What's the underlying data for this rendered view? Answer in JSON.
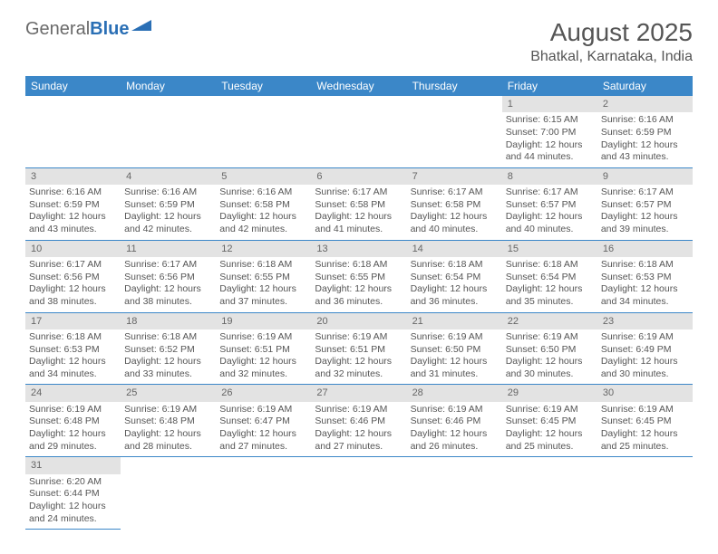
{
  "logo": {
    "general": "General",
    "blue": "Blue"
  },
  "title": {
    "month": "August 2025",
    "location": "Bhatkal, Karnataka, India"
  },
  "colors": {
    "header_bg": "#3b87c8",
    "daynum_bg": "#e3e3e3",
    "border": "#3b87c8"
  },
  "weekdays": [
    "Sunday",
    "Monday",
    "Tuesday",
    "Wednesday",
    "Thursday",
    "Friday",
    "Saturday"
  ],
  "days": [
    {
      "n": "1",
      "sr": "6:15 AM",
      "ss": "7:00 PM",
      "dl": "12 hours and 44 minutes."
    },
    {
      "n": "2",
      "sr": "6:16 AM",
      "ss": "6:59 PM",
      "dl": "12 hours and 43 minutes."
    },
    {
      "n": "3",
      "sr": "6:16 AM",
      "ss": "6:59 PM",
      "dl": "12 hours and 43 minutes."
    },
    {
      "n": "4",
      "sr": "6:16 AM",
      "ss": "6:59 PM",
      "dl": "12 hours and 42 minutes."
    },
    {
      "n": "5",
      "sr": "6:16 AM",
      "ss": "6:58 PM",
      "dl": "12 hours and 42 minutes."
    },
    {
      "n": "6",
      "sr": "6:17 AM",
      "ss": "6:58 PM",
      "dl": "12 hours and 41 minutes."
    },
    {
      "n": "7",
      "sr": "6:17 AM",
      "ss": "6:58 PM",
      "dl": "12 hours and 40 minutes."
    },
    {
      "n": "8",
      "sr": "6:17 AM",
      "ss": "6:57 PM",
      "dl": "12 hours and 40 minutes."
    },
    {
      "n": "9",
      "sr": "6:17 AM",
      "ss": "6:57 PM",
      "dl": "12 hours and 39 minutes."
    },
    {
      "n": "10",
      "sr": "6:17 AM",
      "ss": "6:56 PM",
      "dl": "12 hours and 38 minutes."
    },
    {
      "n": "11",
      "sr": "6:17 AM",
      "ss": "6:56 PM",
      "dl": "12 hours and 38 minutes."
    },
    {
      "n": "12",
      "sr": "6:18 AM",
      "ss": "6:55 PM",
      "dl": "12 hours and 37 minutes."
    },
    {
      "n": "13",
      "sr": "6:18 AM",
      "ss": "6:55 PM",
      "dl": "12 hours and 36 minutes."
    },
    {
      "n": "14",
      "sr": "6:18 AM",
      "ss": "6:54 PM",
      "dl": "12 hours and 36 minutes."
    },
    {
      "n": "15",
      "sr": "6:18 AM",
      "ss": "6:54 PM",
      "dl": "12 hours and 35 minutes."
    },
    {
      "n": "16",
      "sr": "6:18 AM",
      "ss": "6:53 PM",
      "dl": "12 hours and 34 minutes."
    },
    {
      "n": "17",
      "sr": "6:18 AM",
      "ss": "6:53 PM",
      "dl": "12 hours and 34 minutes."
    },
    {
      "n": "18",
      "sr": "6:18 AM",
      "ss": "6:52 PM",
      "dl": "12 hours and 33 minutes."
    },
    {
      "n": "19",
      "sr": "6:19 AM",
      "ss": "6:51 PM",
      "dl": "12 hours and 32 minutes."
    },
    {
      "n": "20",
      "sr": "6:19 AM",
      "ss": "6:51 PM",
      "dl": "12 hours and 32 minutes."
    },
    {
      "n": "21",
      "sr": "6:19 AM",
      "ss": "6:50 PM",
      "dl": "12 hours and 31 minutes."
    },
    {
      "n": "22",
      "sr": "6:19 AM",
      "ss": "6:50 PM",
      "dl": "12 hours and 30 minutes."
    },
    {
      "n": "23",
      "sr": "6:19 AM",
      "ss": "6:49 PM",
      "dl": "12 hours and 30 minutes."
    },
    {
      "n": "24",
      "sr": "6:19 AM",
      "ss": "6:48 PM",
      "dl": "12 hours and 29 minutes."
    },
    {
      "n": "25",
      "sr": "6:19 AM",
      "ss": "6:48 PM",
      "dl": "12 hours and 28 minutes."
    },
    {
      "n": "26",
      "sr": "6:19 AM",
      "ss": "6:47 PM",
      "dl": "12 hours and 27 minutes."
    },
    {
      "n": "27",
      "sr": "6:19 AM",
      "ss": "6:46 PM",
      "dl": "12 hours and 27 minutes."
    },
    {
      "n": "28",
      "sr": "6:19 AM",
      "ss": "6:46 PM",
      "dl": "12 hours and 26 minutes."
    },
    {
      "n": "29",
      "sr": "6:19 AM",
      "ss": "6:45 PM",
      "dl": "12 hours and 25 minutes."
    },
    {
      "n": "30",
      "sr": "6:19 AM",
      "ss": "6:45 PM",
      "dl": "12 hours and 25 minutes."
    },
    {
      "n": "31",
      "sr": "6:20 AM",
      "ss": "6:44 PM",
      "dl": "12 hours and 24 minutes."
    }
  ],
  "labels": {
    "sunrise": "Sunrise: ",
    "sunset": "Sunset: ",
    "daylight": "Daylight: "
  },
  "first_weekday_index": 5
}
